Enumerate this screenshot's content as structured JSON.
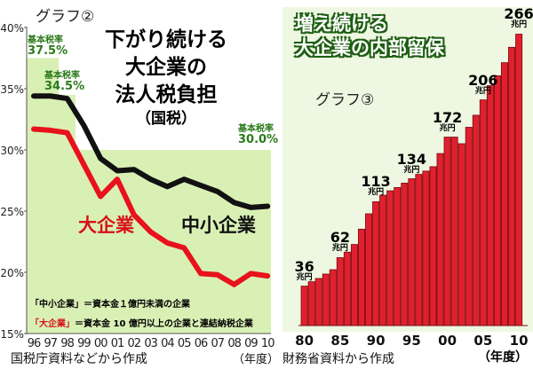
{
  "left": {
    "graph_label": "グラフ②",
    "title_lines": [
      "下がり続ける",
      "大企業の",
      "法人税負担",
      "（国税）"
    ],
    "rates": [
      {
        "label": "基本税率",
        "value": "37.5%"
      },
      {
        "label": "基本税率",
        "value": "34.5%"
      },
      {
        "label": "基本税率",
        "value": "30.0%"
      }
    ],
    "series_labels": {
      "large": "大企業",
      "sme": "中小企業"
    },
    "notes": {
      "sme_term": "「中小企業」",
      "sme_def": "＝資本金１億円未満の企業",
      "large_term": "「大企業」",
      "large_def": "＝資本金 10 億円以上の企業と連結納税企業"
    },
    "source": "国税庁資料などから作成",
    "unit": "（年度）"
  },
  "right": {
    "graph_label": "グラフ③",
    "title_lines": [
      "増え続ける",
      "大企業の内部留保"
    ],
    "unit_label": "兆円",
    "source": "財務省資料から作成",
    "unit": "（年度）"
  },
  "colors": {
    "red": "#e8121c",
    "black": "#111111",
    "green_bg": "#d9f0b5",
    "panel_bg": "#eef7e2",
    "bar": "#e0202e"
  },
  "chart_data": [
    {
      "type": "line",
      "title": "下がり続ける大企業の法人税負担（国税）",
      "x": [
        "96",
        "97",
        "98",
        "99",
        "00",
        "01",
        "02",
        "03",
        "04",
        "05",
        "06",
        "07",
        "08",
        "09",
        "10"
      ],
      "yticks": [
        "40%",
        "35%",
        "30%",
        "25%",
        "20%",
        "15%"
      ],
      "ylim": [
        15,
        40
      ],
      "base_rate_steps": [
        37.5,
        37.5,
        34.5,
        30,
        30,
        30,
        30,
        30,
        30,
        30,
        30,
        30,
        30,
        30,
        30
      ],
      "series": [
        {
          "name": "中小企業",
          "color": "#111111",
          "values": [
            34.4,
            34.4,
            34.2,
            32.0,
            29.3,
            28.3,
            28.4,
            27.6,
            27.0,
            27.6,
            27.1,
            26.6,
            25.7,
            25.3,
            25.4
          ]
        },
        {
          "name": "大企業",
          "color": "#e8121c",
          "values": [
            31.7,
            31.6,
            31.4,
            28.8,
            26.2,
            27.6,
            24.7,
            23.3,
            22.4,
            22.0,
            19.9,
            19.8,
            19.0,
            19.9,
            19.7
          ]
        }
      ],
      "xlabel": "（年度）",
      "ylabel": ""
    },
    {
      "type": "bar",
      "title": "増え続ける大企業の内部留保",
      "categories": [
        "80",
        "81",
        "82",
        "83",
        "84",
        "85",
        "86",
        "87",
        "88",
        "89",
        "90",
        "91",
        "92",
        "93",
        "94",
        "95",
        "96",
        "97",
        "98",
        "99",
        "00",
        "01",
        "02",
        "03",
        "04",
        "05",
        "06",
        "07",
        "08",
        "09",
        "10"
      ],
      "xtick_labels": [
        "80",
        "85",
        "90",
        "95",
        "00",
        "05",
        "10"
      ],
      "values": [
        36,
        40,
        43,
        47,
        51,
        62,
        67,
        74,
        88,
        102,
        113,
        119,
        123,
        126,
        130,
        134,
        138,
        141,
        145,
        157,
        172,
        172,
        166,
        181,
        192,
        206,
        219,
        228,
        240,
        254,
        266
      ],
      "data_labels": [
        {
          "index": 0,
          "text": "36"
        },
        {
          "index": 5,
          "text": "62"
        },
        {
          "index": 10,
          "text": "113"
        },
        {
          "index": 15,
          "text": "134"
        },
        {
          "index": 20,
          "text": "172"
        },
        {
          "index": 25,
          "text": "206"
        },
        {
          "index": 30,
          "text": "266"
        }
      ],
      "ylabel": "兆円",
      "xlabel": "（年度）"
    }
  ]
}
